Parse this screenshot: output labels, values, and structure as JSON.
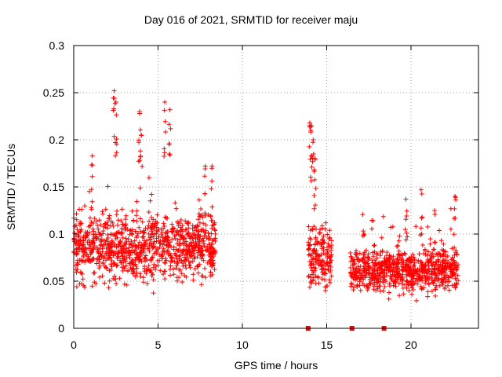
{
  "chart_data": {
    "type": "scatter",
    "title": "Day 016 of 2021, SRMTID for receiver maju",
    "xlabel": "GPS time / hours",
    "ylabel": "SRMTID / TECUs",
    "xlim": [
      0,
      24
    ],
    "ylim": [
      0,
      0.3
    ],
    "xticks": [
      0,
      5,
      10,
      15,
      20
    ],
    "yticks": [
      0,
      0.05,
      0.1,
      0.15,
      0.2,
      0.25,
      0.3
    ],
    "xtick_labels": [
      "0",
      "5",
      "10",
      "15",
      "20"
    ],
    "ytick_labels": [
      "0",
      "0.05",
      "0.1",
      "0.15",
      "0.2",
      "0.25",
      "0.3"
    ],
    "grid": true,
    "marker": "+",
    "color": "#ff0000",
    "clusters": [
      {
        "x_start": 0.0,
        "x_end": 8.4,
        "median": 0.085,
        "spread": 0.028,
        "peaks": [
          [
            2.4,
            0.252
          ],
          [
            2.5,
            0.24
          ],
          [
            3.9,
            0.23
          ],
          [
            5.4,
            0.24
          ],
          [
            5.7,
            0.232
          ],
          [
            1.1,
            0.183
          ],
          [
            4.0,
            0.205
          ],
          [
            7.8,
            0.172
          ],
          [
            8.2,
            0.172
          ]
        ]
      },
      {
        "x_start": 13.9,
        "x_end": 15.3,
        "median": 0.075,
        "spread": 0.025,
        "peaks": [
          [
            14.0,
            0.218
          ],
          [
            14.1,
            0.215
          ],
          [
            14.2,
            0.2
          ],
          [
            14.3,
            0.18
          ]
        ]
      },
      {
        "x_start": 16.4,
        "x_end": 22.8,
        "median": 0.062,
        "spread": 0.018,
        "peaks": [
          [
            17.2,
            0.1
          ],
          [
            19.7,
            0.137
          ],
          [
            20.6,
            0.147
          ],
          [
            21.4,
            0.125
          ],
          [
            22.6,
            0.14
          ]
        ]
      }
    ],
    "zero_points": [
      {
        "x": 13.9,
        "y": 0
      },
      {
        "x": 16.5,
        "y": 0
      },
      {
        "x": 18.4,
        "y": 0
      }
    ]
  }
}
